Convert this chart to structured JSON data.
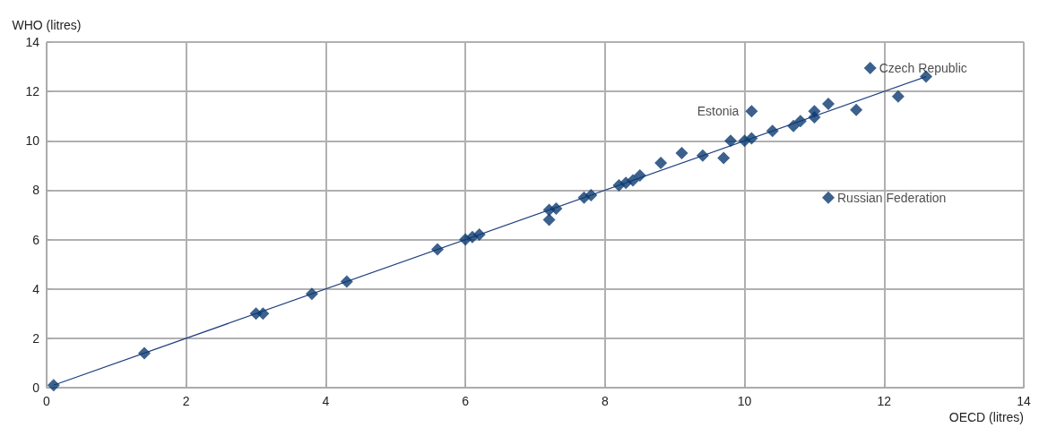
{
  "chart_data": {
    "type": "scatter",
    "xlabel": "OECD (litres)",
    "ylabel": "WHO (litres)",
    "xlim": [
      0,
      14
    ],
    "ylim": [
      0,
      14
    ],
    "xticks": [
      0,
      2,
      4,
      6,
      8,
      10,
      12,
      14
    ],
    "yticks": [
      0,
      2,
      4,
      6,
      8,
      10,
      12,
      14
    ],
    "grid": true,
    "marker": "diamond",
    "series": [
      {
        "color": "#0b3a70",
        "x": [
          0.1,
          1.4,
          3.0,
          3.1,
          3.8,
          4.3,
          5.6,
          6.0,
          6.1,
          6.2,
          7.2,
          7.2,
          7.3,
          7.7,
          7.8,
          8.2,
          8.3,
          8.4,
          8.5,
          8.8,
          9.1,
          9.4,
          9.7,
          9.8,
          10.0,
          10.1,
          10.1,
          10.4,
          10.7,
          10.8,
          11.0,
          11.0,
          11.2,
          11.6,
          11.8,
          12.2,
          12.6,
          11.2
        ],
        "values": [
          0.1,
          1.4,
          3.0,
          3.0,
          3.8,
          4.3,
          5.6,
          6.0,
          6.1,
          6.2,
          7.2,
          6.8,
          7.25,
          7.7,
          7.8,
          8.2,
          8.3,
          8.4,
          8.6,
          9.1,
          9.5,
          9.4,
          9.3,
          10.0,
          10.0,
          10.1,
          11.2,
          10.4,
          10.6,
          10.8,
          11.2,
          10.95,
          11.5,
          11.25,
          12.95,
          11.8,
          12.6,
          7.7
        ]
      },
      {
        "type": "line",
        "color": "#1f3f7f",
        "marker": "none",
        "x": [
          0.1,
          12.6
        ],
        "values": [
          0.1,
          12.6
        ]
      }
    ],
    "annotations": [
      {
        "text": "Czech Republic",
        "x": 11.8,
        "y": 12.95
      },
      {
        "text": "Estonia",
        "x": 10.1,
        "y": 11.2
      },
      {
        "text": "Russian Federation",
        "x": 11.2,
        "y": 7.7
      }
    ]
  }
}
